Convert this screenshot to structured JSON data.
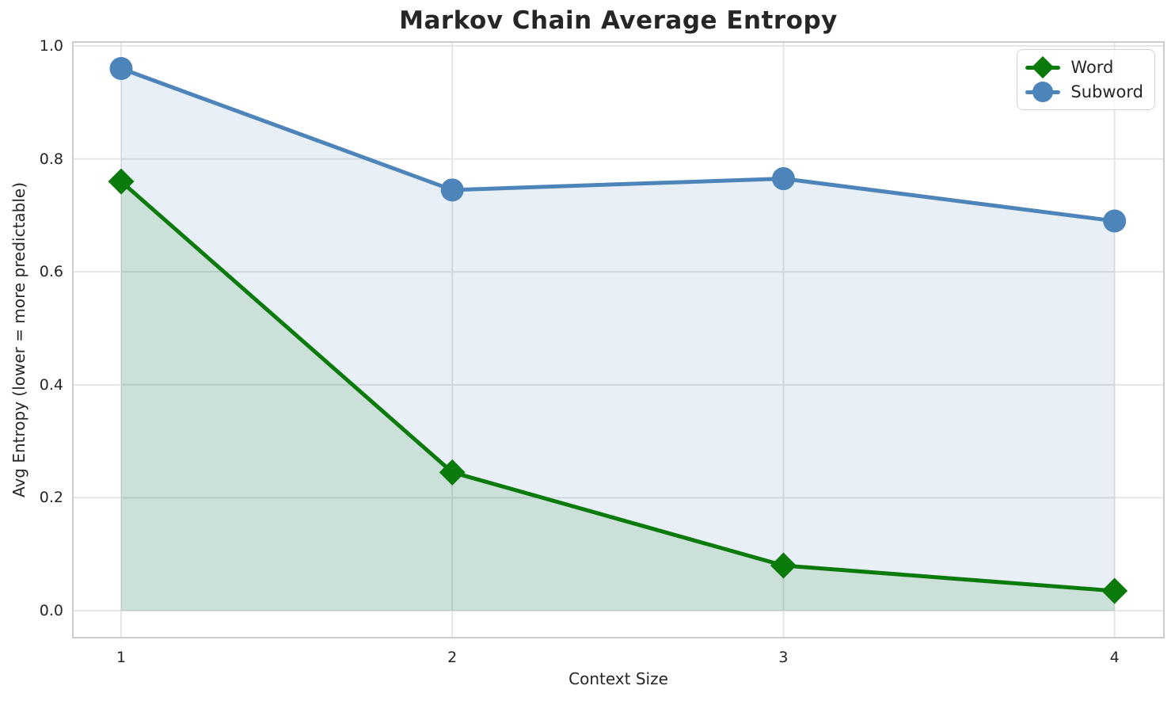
{
  "chart_data": {
    "type": "line",
    "title": "Markov Chain Average Entropy",
    "xlabel": "Context Size",
    "ylabel": "Avg Entropy (lower = more predictable)",
    "x": [
      1,
      2,
      3,
      4
    ],
    "xtick_labels": [
      "1",
      "2",
      "3",
      "4"
    ],
    "ylim": [
      0.0,
      1.0
    ],
    "yticks": [
      0.0,
      0.2,
      0.4,
      0.6,
      0.8,
      1.0
    ],
    "ytick_labels": [
      "0.0",
      "0.2",
      "0.4",
      "0.6",
      "0.8",
      "1.0"
    ],
    "grid": true,
    "legend_position": "upper right",
    "series": [
      {
        "name": "Word",
        "values": [
          0.76,
          0.245,
          0.08,
          0.035
        ],
        "color": "#0a7a0a",
        "marker": "diamond",
        "area_fill": true
      },
      {
        "name": "Subword",
        "values": [
          0.96,
          0.745,
          0.765,
          0.69
        ],
        "color": "#4d85ba",
        "marker": "circle",
        "area_fill": true
      }
    ],
    "colors": {
      "grid": "#e2e2e2",
      "frame": "#cccccc",
      "text": "#262626",
      "background": "#ffffff"
    }
  }
}
